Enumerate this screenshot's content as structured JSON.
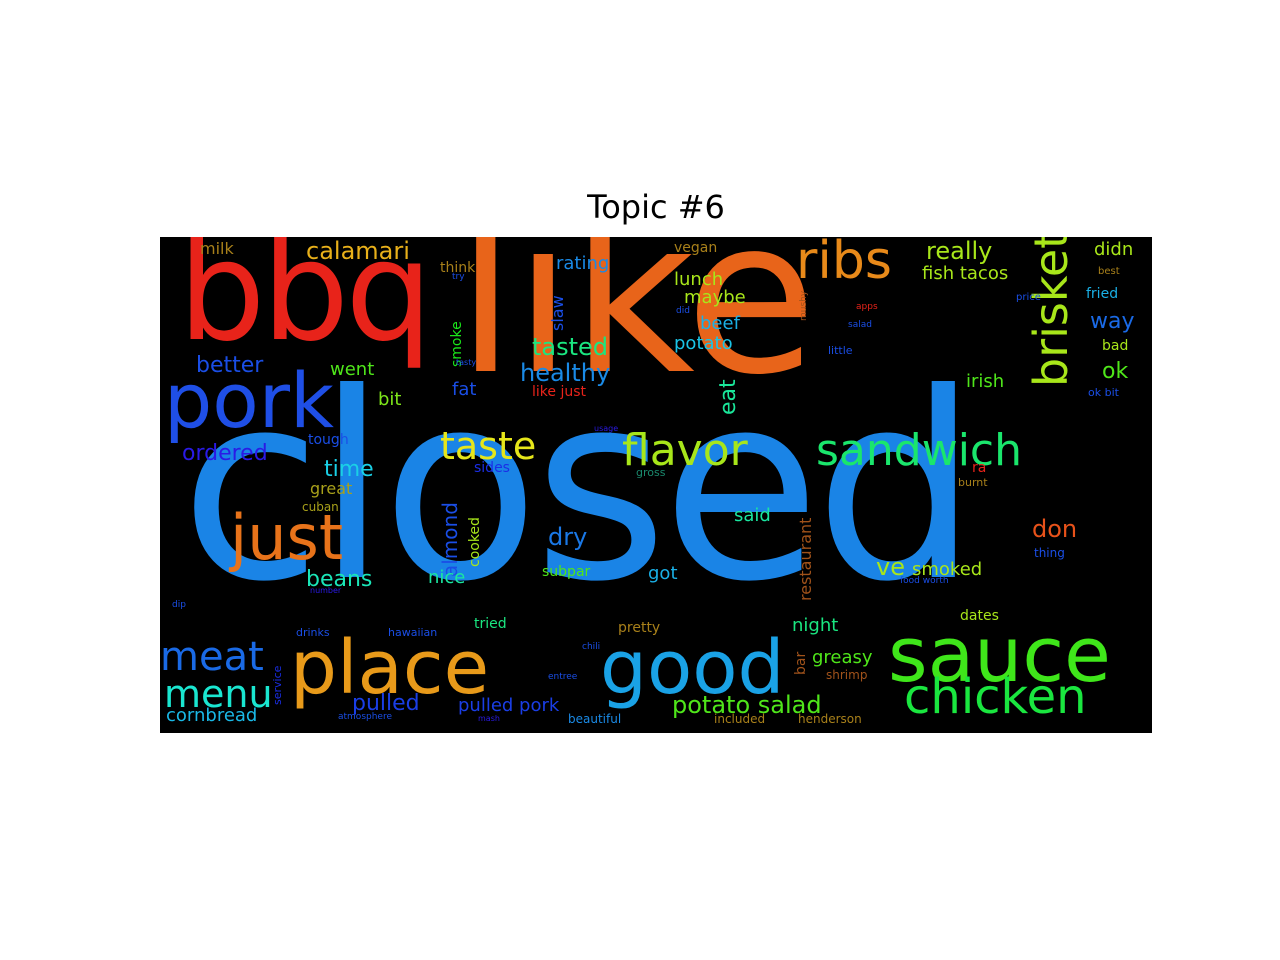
{
  "title": "Topic #6",
  "words": [
    {
      "text": "closed",
      "color": "#1a84e6"
    },
    {
      "text": "like",
      "color": "#e8641a"
    },
    {
      "text": "bbq",
      "color": "#e8231a"
    },
    {
      "text": "pork",
      "color": "#1f4fe6"
    },
    {
      "text": "sauce",
      "color": "#3fe61a"
    },
    {
      "text": "place",
      "color": "#e89a1a"
    },
    {
      "text": "good",
      "color": "#1aa2e6"
    },
    {
      "text": "just",
      "color": "#e8731a"
    },
    {
      "text": "ribs",
      "color": "#e88a1a"
    },
    {
      "text": "brisket",
      "color": "#a8e61a"
    },
    {
      "text": "chicken",
      "color": "#1ae63f"
    },
    {
      "text": "flavor",
      "color": "#a8e61a"
    },
    {
      "text": "sandwich",
      "color": "#1ae66c"
    },
    {
      "text": "taste",
      "color": "#e6e61a"
    },
    {
      "text": "meat",
      "color": "#1a6ae6"
    },
    {
      "text": "menu",
      "color": "#1ae6d0"
    },
    {
      "text": "calamari",
      "color": "#e8b01a"
    },
    {
      "text": "really",
      "color": "#a8e61a"
    },
    {
      "text": "healthy",
      "color": "#1a8ae6"
    },
    {
      "text": "tasted",
      "color": "#1ae680"
    },
    {
      "text": "potato salad",
      "color": "#4fe61a"
    },
    {
      "text": "pulled",
      "color": "#1a3ee6"
    },
    {
      "text": "pulled pork",
      "color": "#1a3ee6"
    },
    {
      "text": "ordered",
      "color": "#2a1ae6"
    },
    {
      "text": "better",
      "color": "#1a4ee6"
    },
    {
      "text": "cornbread",
      "color": "#1ab8e6"
    },
    {
      "text": "don",
      "color": "#e8521a"
    },
    {
      "text": "dry",
      "color": "#1a78e6"
    },
    {
      "text": "beans",
      "color": "#1ae6b8"
    },
    {
      "text": "time",
      "color": "#1ad0e6"
    },
    {
      "text": "almond",
      "color": "#1a4ee6"
    },
    {
      "text": "eat",
      "color": "#1ae69a"
    },
    {
      "text": "way",
      "color": "#1a6ae6"
    },
    {
      "text": "ok",
      "color": "#4fe61a"
    },
    {
      "text": "ve",
      "color": "#a8e61a"
    },
    {
      "text": "smoked",
      "color": "#a8e61a"
    },
    {
      "text": "rating",
      "color": "#1a8ae6"
    },
    {
      "text": "went",
      "color": "#4fe61a"
    },
    {
      "text": "bit",
      "color": "#7ee61a"
    },
    {
      "text": "irish",
      "color": "#4fe61a"
    },
    {
      "text": "fish tacos",
      "color": "#a8e61a"
    },
    {
      "text": "didn",
      "color": "#a8e61a"
    },
    {
      "text": "lunch",
      "color": "#a8e61a"
    },
    {
      "text": "maybe",
      "color": "#a8e61a"
    },
    {
      "text": "beef",
      "color": "#1ab0e6"
    },
    {
      "text": "potato",
      "color": "#1ac4e6"
    },
    {
      "text": "got",
      "color": "#1ab0e6"
    },
    {
      "text": "nice",
      "color": "#1ae6a0"
    },
    {
      "text": "said",
      "color": "#1ae6a0"
    },
    {
      "text": "night",
      "color": "#1ae680"
    },
    {
      "text": "greasy",
      "color": "#4fe61a"
    },
    {
      "text": "subpar",
      "color": "#4fe61a"
    },
    {
      "text": "great",
      "color": "#a8a01a"
    },
    {
      "text": "milk",
      "color": "#a8801a"
    },
    {
      "text": "restaurant",
      "color": "#a0521a"
    },
    {
      "text": "fat",
      "color": "#1a4ee6"
    },
    {
      "text": "slaw",
      "color": "#1a4ee6"
    },
    {
      "text": "smoke",
      "color": "#1ae61a"
    },
    {
      "text": "cooked",
      "color": "#a8e61a"
    },
    {
      "text": "tough",
      "color": "#1a4ee6"
    },
    {
      "text": "sides",
      "color": "#1a2ee6"
    },
    {
      "text": "dates",
      "color": "#a8e61a"
    },
    {
      "text": "fried",
      "color": "#1ab0e6"
    },
    {
      "text": "bad",
      "color": "#a8e61a"
    },
    {
      "text": "like just",
      "color": "#e8231a"
    },
    {
      "text": "think",
      "color": "#a8801a"
    },
    {
      "text": "vegan",
      "color": "#a8801a"
    },
    {
      "text": "tried",
      "color": "#1ae680"
    },
    {
      "text": "pretty",
      "color": "#a8801a"
    },
    {
      "text": "bar",
      "color": "#a0521a"
    },
    {
      "text": "shrimp",
      "color": "#a0521a"
    },
    {
      "text": "included",
      "color": "#a8801a"
    },
    {
      "text": "henderson",
      "color": "#a8801a"
    },
    {
      "text": "beautiful",
      "color": "#1a8ae6"
    },
    {
      "text": "cuban",
      "color": "#a8a01a"
    },
    {
      "text": "hawaiian",
      "color": "#1a4ee6"
    },
    {
      "text": "drinks",
      "color": "#1a4ee6"
    },
    {
      "text": "service",
      "color": "#1a2ee6"
    },
    {
      "text": "burnt",
      "color": "#a8801a"
    },
    {
      "text": "ra",
      "color": "#e8231a"
    },
    {
      "text": "gross",
      "color": "#1a8a6e"
    },
    {
      "text": "thing",
      "color": "#1a4ee6"
    },
    {
      "text": "little",
      "color": "#1a4ee6"
    },
    {
      "text": "best",
      "color": "#a8801a"
    },
    {
      "text": "ok bit",
      "color": "#1a4ee6"
    },
    {
      "text": "price",
      "color": "#1a4ee6"
    },
    {
      "text": "chili",
      "color": "#1a4ee6"
    },
    {
      "text": "entree",
      "color": "#1a4ee6"
    },
    {
      "text": "food worth",
      "color": "#1a4ee6"
    },
    {
      "text": "atmosphere",
      "color": "#1a4ee6"
    },
    {
      "text": "salad",
      "color": "#1a4ee6"
    },
    {
      "text": "dip",
      "color": "#1a4ee6"
    },
    {
      "text": "did",
      "color": "#1a4ee6"
    },
    {
      "text": "try",
      "color": "#1a4ee6"
    },
    {
      "text": "tasty",
      "color": "#1a4ee6"
    },
    {
      "text": "apps",
      "color": "#e8231a"
    },
    {
      "text": "mushy",
      "color": "#a0521a"
    },
    {
      "text": "usage",
      "color": "#2a1ae6"
    },
    {
      "text": "mash",
      "color": "#2a1ae6"
    },
    {
      "text": "number",
      "color": "#2a1ae6"
    }
  ]
}
